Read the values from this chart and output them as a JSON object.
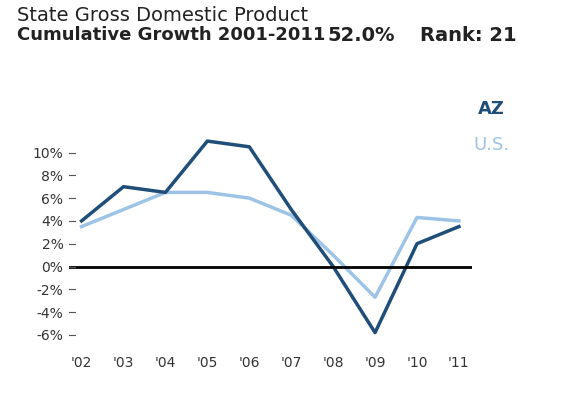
{
  "title_line1": "State Gross Domestic Product",
  "title_line2": "Cumulative Growth 2001-2011",
  "subtitle_pct": "52.0%",
  "subtitle_rank": "Rank: 21",
  "years": [
    "'02",
    "'03",
    "'04",
    "'05",
    "'06",
    "'07",
    "'08",
    "'09",
    "'10",
    "'11"
  ],
  "az_values": [
    4.0,
    7.0,
    6.5,
    11.0,
    10.5,
    5.0,
    0.0,
    -5.8,
    2.0,
    3.5
  ],
  "us_values": [
    3.5,
    5.0,
    6.5,
    6.5,
    6.0,
    4.5,
    1.0,
    -2.7,
    4.3,
    4.0
  ],
  "az_color": "#1F4E79",
  "us_color": "#9DC3E6",
  "yticks": [
    -6,
    -4,
    -2,
    0,
    2,
    4,
    6,
    8,
    10
  ],
  "ylim": [
    -7.5,
    12.5
  ],
  "xlim": [
    -0.3,
    9.3
  ],
  "legend_az_label": "AZ",
  "legend_us_label": "U.S.",
  "zero_line_color": "#000000",
  "background_color": "#FFFFFF",
  "line_width": 2.5,
  "title1_fontsize": 14,
  "title2_fontsize": 13,
  "subtitle_fontsize": 14,
  "tick_fontsize": 10,
  "legend_fontsize": 13
}
